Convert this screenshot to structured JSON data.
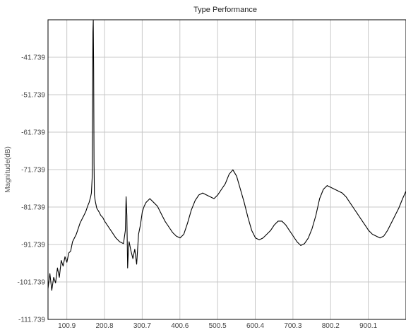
{
  "chart_data": {
    "type": "line",
    "title": "Type Performance",
    "xlabel": "",
    "ylabel": "Magnitude(dB)",
    "grid": true,
    "legend": "none",
    "xlim": [
      51.0,
      1000.0
    ],
    "ylim": [
      -111.739,
      -31.739
    ],
    "x_ticks": [
      "100.9",
      "200.8",
      "300.7",
      "400.6",
      "500.5",
      "600.4",
      "700.3",
      "800.2",
      "900.1"
    ],
    "y_ticks": [
      "-41.739",
      "-51.739",
      "-61.739",
      "-71.739",
      "-81.739",
      "-91.739",
      "-101.739",
      "-111.739"
    ],
    "colors": {
      "line": "#000000",
      "grid": "#c8c8c8",
      "frame": "#000000"
    },
    "series": [
      {
        "x": [
          51,
          56,
          61,
          66,
          71,
          76,
          81,
          86,
          91,
          96,
          101,
          106,
          111,
          116,
          121,
          126,
          131,
          136,
          141,
          146,
          151,
          156,
          160,
          164,
          166,
          168,
          169,
          170,
          171,
          172,
          173,
          174,
          176,
          180,
          186,
          191,
          196,
          201,
          211,
          221,
          231,
          241,
          251,
          256,
          258,
          260,
          262,
          264,
          266,
          271,
          276,
          281,
          286,
          291,
          296,
          301,
          306,
          311,
          316,
          321,
          331,
          341,
          351,
          361,
          371,
          381,
          391,
          401,
          411,
          421,
          431,
          441,
          451,
          461,
          471,
          481,
          491,
          501,
          511,
          521,
          531,
          541,
          551,
          561,
          571,
          581,
          591,
          601,
          611,
          621,
          631,
          641,
          651,
          661,
          671,
          681,
          691,
          701,
          711,
          721,
          731,
          741,
          751,
          761,
          771,
          781,
          791,
          801,
          811,
          821,
          831,
          841,
          851,
          861,
          871,
          881,
          891,
          901,
          911,
          921,
          931,
          941,
          951,
          961,
          971,
          981,
          991,
          1000
        ],
        "y": [
          -103.5,
          -99.5,
          -104.0,
          -100.5,
          -102.0,
          -98.0,
          -100.5,
          -96.0,
          -97.5,
          -95.0,
          -96.5,
          -94.0,
          -93.5,
          -91.0,
          -90.0,
          -89.0,
          -87.5,
          -86.0,
          -85.0,
          -84.0,
          -83.0,
          -81.5,
          -80.5,
          -79.0,
          -78.0,
          -74.0,
          -55.0,
          -35.0,
          -31.9,
          -45.0,
          -70.0,
          -78.5,
          -80.0,
          -82.0,
          -83.0,
          -84.0,
          -84.5,
          -85.5,
          -87.0,
          -88.5,
          -90.0,
          -91.0,
          -91.5,
          -88.0,
          -79.0,
          -84.0,
          -98.0,
          -93.5,
          -91.0,
          -93.5,
          -95.5,
          -93.0,
          -97.0,
          -89.0,
          -86.5,
          -83.0,
          -81.5,
          -80.5,
          -80.0,
          -79.5,
          -80.5,
          -81.5,
          -83.5,
          -85.5,
          -87.0,
          -88.5,
          -89.5,
          -90.0,
          -89.0,
          -86.0,
          -82.5,
          -80.0,
          -78.5,
          -78.0,
          -78.5,
          -79.0,
          -79.5,
          -78.5,
          -77.0,
          -75.5,
          -73.0,
          -71.8,
          -73.5,
          -77.0,
          -80.5,
          -84.5,
          -88.0,
          -90.0,
          -90.5,
          -90.0,
          -89.0,
          -88.0,
          -86.5,
          -85.5,
          -85.5,
          -86.5,
          -88.0,
          -89.5,
          -91.0,
          -92.0,
          -91.5,
          -90.0,
          -87.5,
          -84.0,
          -79.5,
          -77.0,
          -76.0,
          -76.5,
          -77.0,
          -77.5,
          -78.0,
          -79.0,
          -80.5,
          -82.0,
          -83.5,
          -85.0,
          -86.5,
          -88.0,
          -89.0,
          -89.5,
          -90.0,
          -89.5,
          -88.0,
          -86.0,
          -84.0,
          -82.0,
          -79.5,
          -77.5
        ]
      }
    ]
  }
}
